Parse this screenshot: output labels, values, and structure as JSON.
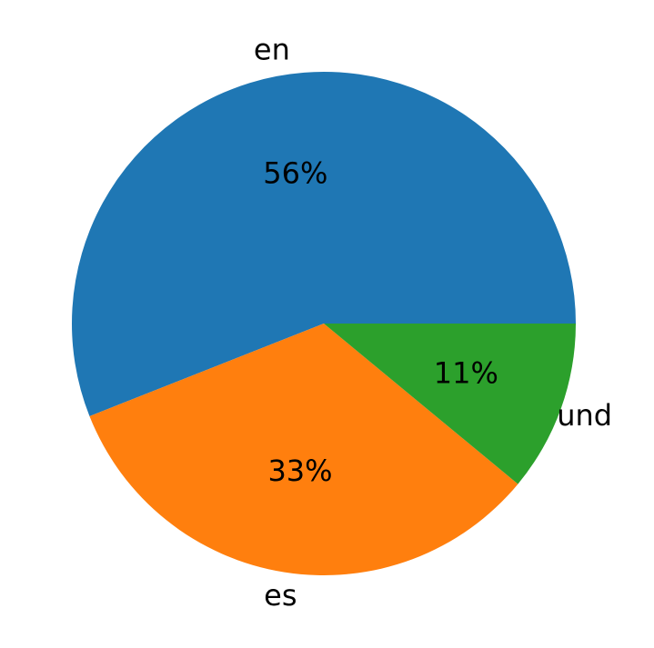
{
  "chart_data": {
    "type": "pie",
    "categories": [
      "en",
      "es",
      "und"
    ],
    "values": [
      56,
      33,
      11
    ],
    "value_labels": [
      "56%",
      "33%",
      "11%"
    ],
    "colors": [
      "#1f77b4",
      "#ff7f0e",
      "#2ca02c"
    ]
  }
}
